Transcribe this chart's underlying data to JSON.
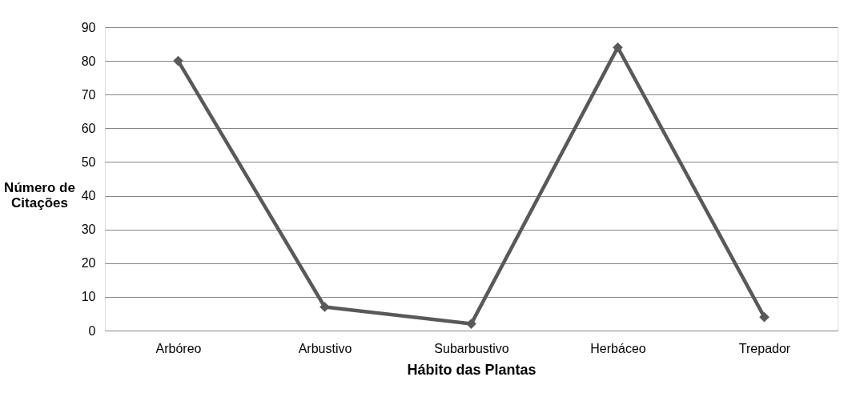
{
  "chart_data": {
    "type": "line",
    "xlabel": "Hábito das Plantas",
    "ylabel": "Número de Citações",
    "categories": [
      "Arbóreo",
      "Arbustivo",
      "Subarbustivo",
      "Herbáceo",
      "Trepador"
    ],
    "series": [
      {
        "color": "#595959",
        "values": [
          80,
          7,
          2,
          84,
          4
        ]
      }
    ],
    "ylim": [
      0,
      90
    ],
    "yticks": [
      0,
      10,
      20,
      30,
      40,
      50,
      60,
      70,
      80,
      90
    ],
    "grid": "y",
    "marker": "diamond",
    "line_style": "solid"
  }
}
